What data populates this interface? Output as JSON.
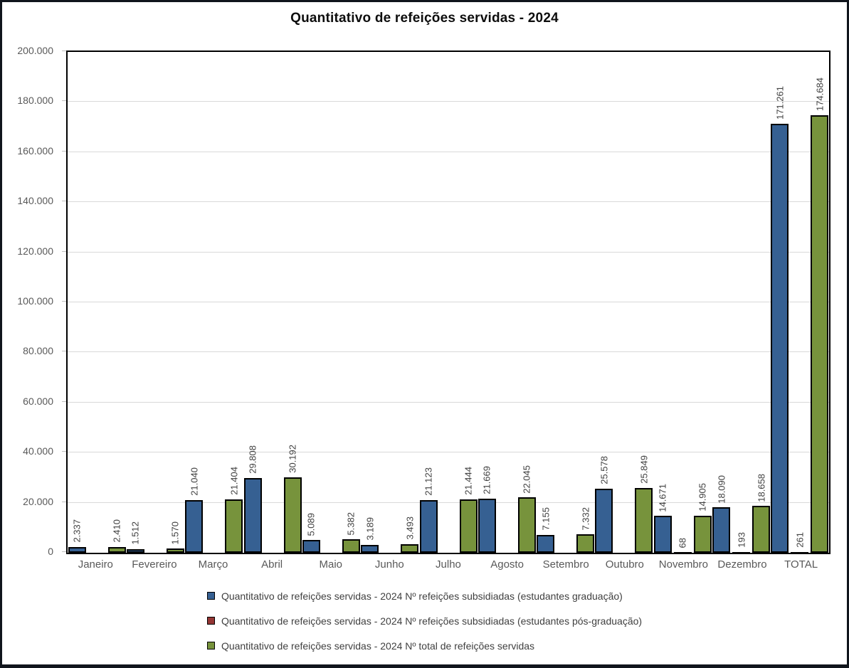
{
  "colors": {
    "background": "#ffffff",
    "frame_border": "#10151c",
    "title": "#0d0d0d",
    "grid": "#d9d9d9",
    "tick": "#bfbfbf",
    "axis_text": "#595959",
    "data_label": "#404040",
    "plot_border": "#000000"
  },
  "chart_data": {
    "type": "bar",
    "title": "Quantitativo de refeições servidas - 2024",
    "categories": [
      "Janeiro",
      "Fevereiro",
      "Março",
      "Abril",
      "Maio",
      "Junho",
      "Julho",
      "Agosto",
      "Setembro",
      "Outubro",
      "Novembro",
      "Dezembro",
      "TOTAL"
    ],
    "series": [
      {
        "name": "Quantitativo de refeições servidas - 2024 Nº refeições subsidiadas (estudantes graduação)",
        "color": "#366092",
        "values": [
          2337,
          1512,
          21040,
          29808,
          5089,
          3189,
          21123,
          21669,
          7155,
          25578,
          14671,
          18090,
          171261
        ],
        "labels": [
          "2.337",
          "1.512",
          "21.040",
          "29.808",
          "5.089",
          "3.189",
          "21.123",
          "21.669",
          "7.155",
          "25.578",
          "14.671",
          "18.090",
          "171.261"
        ]
      },
      {
        "name": "Quantitativo de refeições servidas - 2024 Nº refeições subsidiadas (estudantes pós-graduação)",
        "color": "#943634",
        "values": [
          0,
          0,
          0,
          0,
          0,
          0,
          0,
          0,
          0,
          0,
          68,
          193,
          261
        ],
        "labels": [
          "",
          "",
          "",
          "",
          "",
          "",
          "",
          "",
          "",
          "",
          "68",
          "193",
          "261"
        ]
      },
      {
        "name": "Quantitativo de refeições servidas - 2024 Nº total de refeições servidas",
        "color": "#77933C",
        "values": [
          2410,
          1570,
          21404,
          30192,
          5382,
          3493,
          21444,
          22045,
          7332,
          25849,
          14905,
          18658,
          174684
        ],
        "labels": [
          "2.410",
          "1.570",
          "21.404",
          "30.192",
          "5.382",
          "3.493",
          "21.444",
          "22.045",
          "7.332",
          "25.849",
          "14.905",
          "18.658",
          "174.684"
        ]
      }
    ],
    "ylim": [
      0,
      200000
    ],
    "ytick_step": 20000,
    "ytick_labels": [
      "0",
      "20.000",
      "40.000",
      "60.000",
      "80.000",
      "100.000",
      "120.000",
      "140.000",
      "160.000",
      "180.000",
      "200.000"
    ],
    "grid": true,
    "legend_position": "bottom",
    "bar_label_rotation": "vertical"
  }
}
